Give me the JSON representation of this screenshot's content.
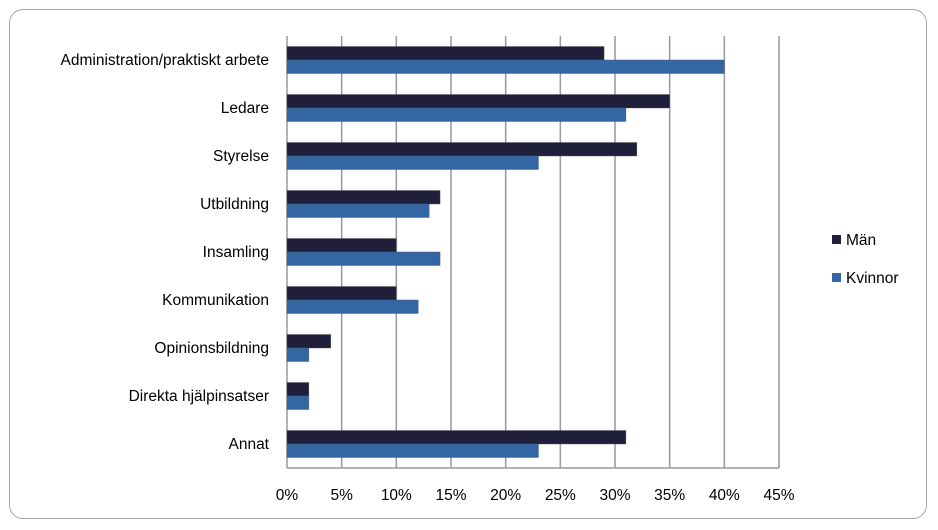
{
  "chart_data": {
    "type": "bar",
    "orientation": "horizontal",
    "title": "",
    "xlabel": "",
    "ylabel": "",
    "categories": [
      "Administration/praktiskt arbete",
      "Ledare",
      "Styrelse",
      "Utbildning",
      "Insamling",
      "Kommunikation",
      "Opinionsbildning",
      "Direkta hjälpinsatser",
      "Annat"
    ],
    "series": [
      {
        "name": "Män",
        "color": "#1f1f3b",
        "values": [
          29,
          35,
          32,
          14,
          10,
          10,
          4,
          2,
          31
        ]
      },
      {
        "name": "Kvinnor",
        "color": "#3266a5",
        "values": [
          40,
          31,
          23,
          13,
          14,
          12,
          2,
          2,
          23
        ]
      }
    ],
    "xlim": [
      0,
      45
    ],
    "xticks": [
      0,
      5,
      10,
      15,
      20,
      25,
      30,
      35,
      40,
      45
    ],
    "xtick_labels": [
      "0%",
      "5%",
      "10%",
      "15%",
      "20%",
      "25%",
      "30%",
      "35%",
      "40%",
      "45%"
    ],
    "grid": true,
    "legend_position": "right"
  }
}
